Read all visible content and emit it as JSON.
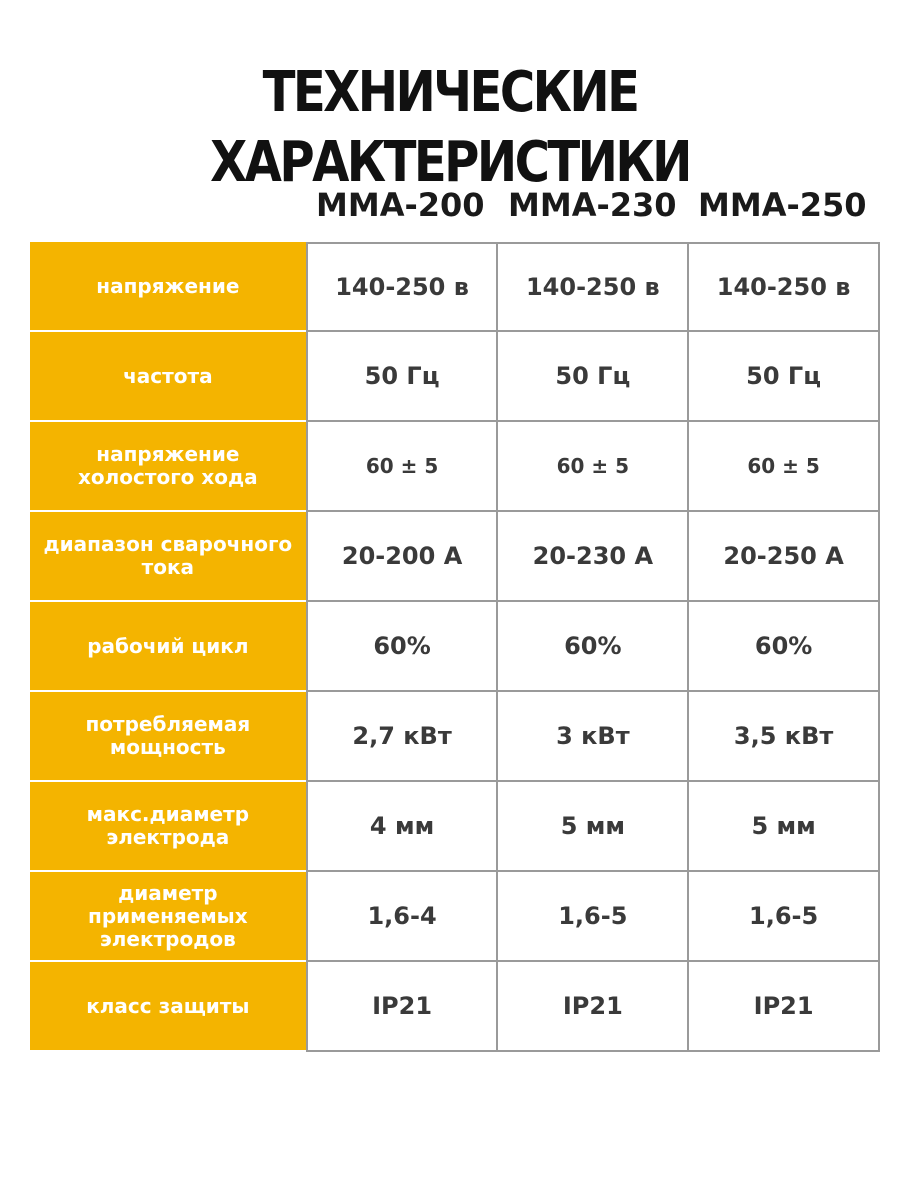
{
  "title": "ТЕХНИЧЕСКИЕ ХАРАКТЕРИСТИКИ",
  "models": [
    "MMA-200",
    "MMA-230",
    "MMA-250"
  ],
  "rows": [
    {
      "label": "напряжение",
      "values": [
        "140-250 в",
        "140-250 в",
        "140-250 в"
      ]
    },
    {
      "label": "частота",
      "values": [
        "50 Гц",
        "50 Гц",
        "50 Гц"
      ]
    },
    {
      "label": "напряжение холостого хода",
      "values": [
        "60 ± 5",
        "60 ± 5",
        "60 ± 5"
      ]
    },
    {
      "label": "диапазон сварочного тока",
      "values": [
        "20-200 А",
        "20-230 А",
        "20-250 А"
      ]
    },
    {
      "label": "рабочий цикл",
      "values": [
        "60%",
        "60%",
        "60%"
      ]
    },
    {
      "label": "потребляемая мощность",
      "values": [
        "2,7 кВт",
        "3 кВт",
        "3,5 кВт"
      ]
    },
    {
      "label": "макс.диаметр электрода",
      "values": [
        "4 мм",
        "5 мм",
        "5 мм"
      ]
    },
    {
      "label": "диаметр применяемых электродов",
      "values": [
        "1,6-4",
        "1,6-5",
        "1,6-5"
      ]
    },
    {
      "label": "класс защиты",
      "values": [
        "IP21",
        "IP21",
        "IP21"
      ]
    }
  ],
  "colors": {
    "accent": "#f4b400",
    "label_text": "#ffffff",
    "value_text": "#3a3a3a",
    "border": "#9a9a9a",
    "title_text": "#111111"
  }
}
